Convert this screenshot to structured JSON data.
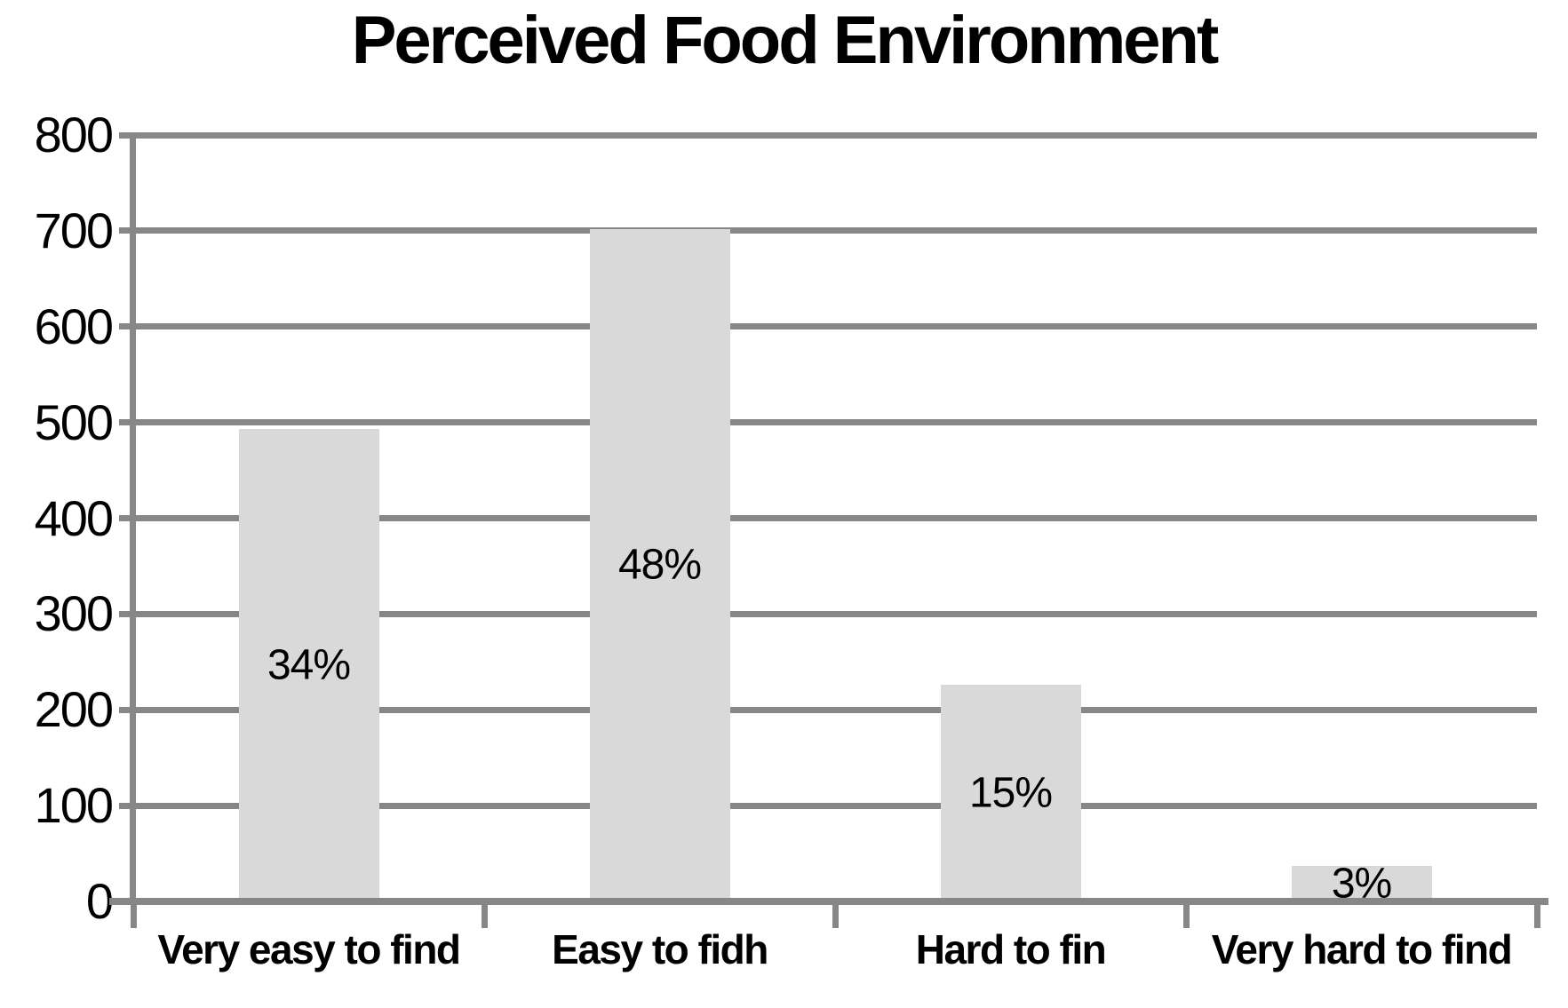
{
  "chart_data": {
    "type": "bar",
    "title": "Perceived Food Environment",
    "categories": [
      "Very easy to find",
      "Easy to fidh",
      "Hard to fin",
      "Very hard to find"
    ],
    "values": [
      493,
      702,
      226,
      37
    ],
    "bar_labels": [
      "34%",
      "48%",
      "15%",
      "3%"
    ],
    "xlabel": "",
    "ylabel": "",
    "ylim": [
      0,
      800
    ],
    "yticks": [
      0,
      100,
      200,
      300,
      400,
      500,
      600,
      700,
      800
    ],
    "grid": "horizontal",
    "legend_position": "none",
    "bar_color": "#d9d9d9",
    "axis_color": "#878787",
    "text_color": "#000000",
    "background_color": "#ffffff"
  }
}
